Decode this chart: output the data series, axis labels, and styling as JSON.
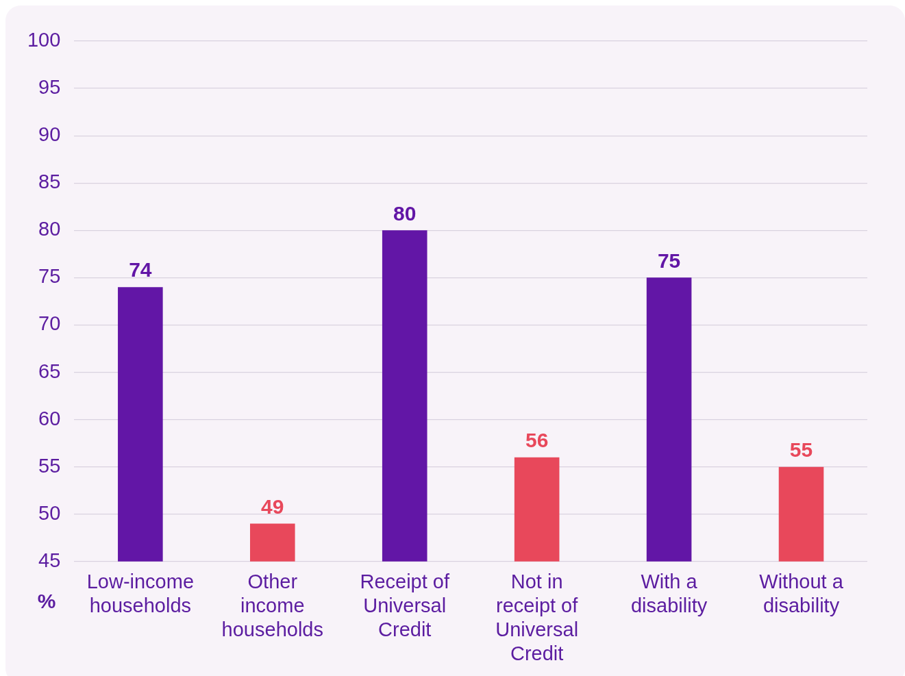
{
  "chart_data": {
    "type": "bar",
    "ylabel": "%",
    "categories": [
      "Low-income households",
      "Other income households",
      "Receipt of Universal Credit",
      "Not in receipt of Universal Credit",
      "With a disability",
      "Without a disability"
    ],
    "values": [
      74,
      49,
      80,
      56,
      75,
      55
    ],
    "colors": [
      "#6216a6",
      "#e8485b",
      "#6216a6",
      "#e8485b",
      "#6216a6",
      "#e8485b"
    ],
    "ylim": [
      45,
      100
    ],
    "yticks": [
      45,
      50,
      55,
      60,
      65,
      70,
      75,
      80,
      85,
      90,
      95,
      100
    ],
    "grid": "y",
    "legend": false,
    "data_labels": true
  }
}
